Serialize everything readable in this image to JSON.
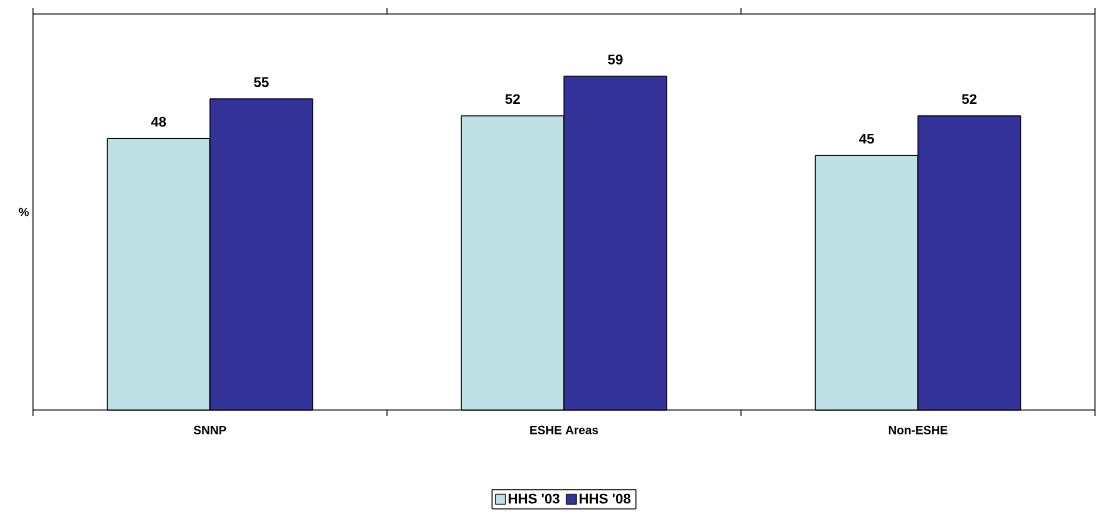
{
  "chart_data": {
    "type": "bar",
    "ylabel": "%",
    "categories": [
      "SNNP",
      "ESHE Areas",
      "Non-ESHE"
    ],
    "series": [
      {
        "name": "HHS '03",
        "color": "#bce0e3",
        "values": [
          48,
          52,
          45
        ]
      },
      {
        "name": "HHS '08",
        "color": "#333399",
        "values": [
          55,
          59,
          52
        ]
      }
    ],
    "ylim": [
      0,
      70
    ],
    "tick_labels": "x",
    "data_labels": true,
    "legend": "bottom"
  }
}
